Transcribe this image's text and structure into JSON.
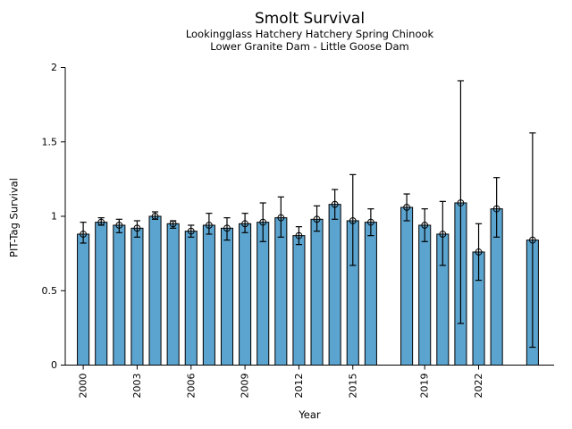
{
  "chart_data": {
    "type": "bar",
    "title": "Smolt Survival",
    "subtitle1": "Lookingglass Hatchery Hatchery Spring Chinook",
    "subtitle2": "Lower Granite Dam - Little Goose Dam",
    "xlabel": "Year",
    "ylabel": "PIT-Tag Survival",
    "ylim": [
      0,
      2
    ],
    "yticks": [
      0,
      0.5,
      1,
      1.5,
      2
    ],
    "ytick_labels": [
      "0",
      "0.5",
      "1",
      "1.5",
      "2"
    ],
    "xticks": [
      2000,
      2003,
      2006,
      2009,
      2012,
      2015,
      2019,
      2022
    ],
    "xlim": [
      1999.0,
      2026.2
    ],
    "grid": false,
    "legend": "none",
    "bar_color": "#5BA4CF",
    "bar_edge_color": "#000000",
    "error_color": "#000000",
    "marker": "open-circle",
    "bar_width_years": 0.65,
    "points": [
      {
        "year": 2000,
        "value": 0.88,
        "err_lo": 0.82,
        "err_hi": 0.96
      },
      {
        "year": 2001,
        "value": 0.96,
        "err_lo": 0.94,
        "err_hi": 0.99
      },
      {
        "year": 2002,
        "value": 0.94,
        "err_lo": 0.89,
        "err_hi": 0.98
      },
      {
        "year": 2003,
        "value": 0.92,
        "err_lo": 0.86,
        "err_hi": 0.97
      },
      {
        "year": 2004,
        "value": 1.0,
        "err_lo": 0.98,
        "err_hi": 1.03
      },
      {
        "year": 2005,
        "value": 0.95,
        "err_lo": 0.92,
        "err_hi": 0.97
      },
      {
        "year": 2006,
        "value": 0.9,
        "err_lo": 0.86,
        "err_hi": 0.94
      },
      {
        "year": 2007,
        "value": 0.94,
        "err_lo": 0.88,
        "err_hi": 1.02
      },
      {
        "year": 2008,
        "value": 0.92,
        "err_lo": 0.84,
        "err_hi": 0.99
      },
      {
        "year": 2009,
        "value": 0.95,
        "err_lo": 0.89,
        "err_hi": 1.02
      },
      {
        "year": 2010,
        "value": 0.96,
        "err_lo": 0.83,
        "err_hi": 1.09
      },
      {
        "year": 2011,
        "value": 0.99,
        "err_lo": 0.86,
        "err_hi": 1.13
      },
      {
        "year": 2012,
        "value": 0.87,
        "err_lo": 0.81,
        "err_hi": 0.93
      },
      {
        "year": 2013,
        "value": 0.98,
        "err_lo": 0.9,
        "err_hi": 1.07
      },
      {
        "year": 2014,
        "value": 1.08,
        "err_lo": 0.98,
        "err_hi": 1.18
      },
      {
        "year": 2015,
        "value": 0.97,
        "err_lo": 0.67,
        "err_hi": 1.28
      },
      {
        "year": 2016,
        "value": 0.96,
        "err_lo": 0.87,
        "err_hi": 1.05
      },
      {
        "year": 2018,
        "value": 1.06,
        "err_lo": 0.97,
        "err_hi": 1.15
      },
      {
        "year": 2019,
        "value": 0.94,
        "err_lo": 0.83,
        "err_hi": 1.05
      },
      {
        "year": 2020,
        "value": 0.88,
        "err_lo": 0.67,
        "err_hi": 1.1
      },
      {
        "year": 2021,
        "value": 1.09,
        "err_lo": 0.28,
        "err_hi": 1.91
      },
      {
        "year": 2022,
        "value": 0.76,
        "err_lo": 0.57,
        "err_hi": 0.95
      },
      {
        "year": 2023,
        "value": 1.05,
        "err_lo": 0.86,
        "err_hi": 1.26
      },
      {
        "year": 2025,
        "value": 0.84,
        "err_lo": 0.12,
        "err_hi": 1.56
      }
    ]
  }
}
